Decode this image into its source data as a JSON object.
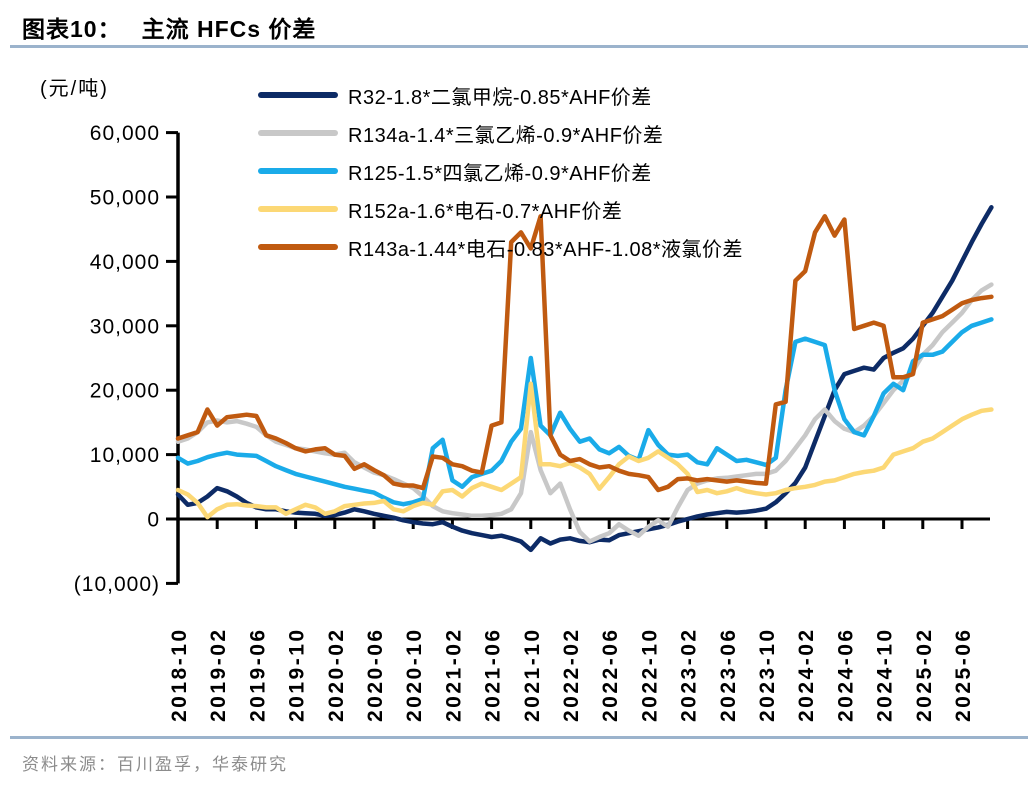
{
  "header": {
    "label": "图表10：",
    "title": "主流 HFCs 价差"
  },
  "footer": {
    "source": "资料来源：百川盈孚，华泰研究"
  },
  "colors": {
    "accent_rule": "#9bb3cc",
    "axis": "#000000",
    "footer_text": "#8c8c8c",
    "title_text": "#000000"
  },
  "chart_data": {
    "type": "line",
    "title": "主流 HFCs 价差",
    "y_unit": "(元/吨)",
    "ylim": [
      -10000,
      60000
    ],
    "grid": false,
    "legend_position": "top-left-inside",
    "x_frequency": "monthly",
    "x_start": "2018-10",
    "x_end": "2025-09",
    "x_tick_interval_months": 4,
    "x_tick_labels": [
      "2018-10",
      "2019-02",
      "2019-06",
      "2019-10",
      "2020-02",
      "2020-06",
      "2020-10",
      "2021-02",
      "2021-06",
      "2021-10",
      "2022-02",
      "2022-06",
      "2022-10",
      "2023-02",
      "2023-06",
      "2023-10",
      "2024-02",
      "2024-06",
      "2024-10",
      "2025-02",
      "2025-06"
    ],
    "y_ticks": [
      {
        "label": "60,000",
        "value": 60000
      },
      {
        "label": "50,000",
        "value": 50000
      },
      {
        "label": "40,000",
        "value": 40000
      },
      {
        "label": "30,000",
        "value": 30000
      },
      {
        "label": "20,000",
        "value": 20000
      },
      {
        "label": "10,000",
        "value": 10000
      },
      {
        "label": "0",
        "value": 0
      },
      {
        "label": "(10,000)",
        "value": -10000
      }
    ],
    "series": [
      {
        "name": "R32-1.8*二氯甲烷-0.85*AHF价差",
        "color": "#0d2b66",
        "values": [
          3800,
          2200,
          2500,
          3500,
          4800,
          4300,
          3500,
          2500,
          1800,
          1500,
          1500,
          1200,
          1000,
          900,
          800,
          500,
          600,
          1000,
          1500,
          1200,
          800,
          500,
          200,
          -200,
          -500,
          -700,
          -800,
          -500,
          -1200,
          -1800,
          -2200,
          -2500,
          -2800,
          -2600,
          -3000,
          -3500,
          -4800,
          -3000,
          -3800,
          -3200,
          -3000,
          -3400,
          -3600,
          -3200,
          -3300,
          -2500,
          -2200,
          -1900,
          -1600,
          -1300,
          -900,
          -400,
          0,
          400,
          700,
          900,
          1100,
          1000,
          1100,
          1300,
          1600,
          2600,
          4000,
          5600,
          8000,
          12000,
          16000,
          20000,
          22500,
          23000,
          23500,
          23200,
          25000,
          25800,
          26500,
          28000,
          30000,
          32000,
          34500,
          37000,
          40000,
          43000,
          45800,
          48400
        ]
      },
      {
        "name": "R134a-1.4*三氯乙烯-0.9*AHF价差",
        "color": "#c8c8c8",
        "values": [
          12000,
          12500,
          13500,
          15000,
          15300,
          15000,
          15200,
          14800,
          14300,
          13000,
          12000,
          11500,
          11000,
          10800,
          10500,
          10200,
          10000,
          10300,
          8800,
          8000,
          7200,
          6800,
          6200,
          5500,
          4800,
          3500,
          2000,
          1200,
          900,
          700,
          500,
          500,
          600,
          800,
          1500,
          4000,
          13500,
          7600,
          4000,
          5500,
          1500,
          -2000,
          -3500,
          -2800,
          -2200,
          -800,
          -1800,
          -2600,
          -1200,
          -200,
          -1200,
          1800,
          4500,
          5500,
          6000,
          6300,
          6400,
          6600,
          6800,
          7000,
          7000,
          7500,
          9000,
          11000,
          13000,
          15500,
          17000,
          15200,
          14000,
          13500,
          14500,
          16000,
          18000,
          20000,
          21500,
          23000,
          25500,
          27000,
          29000,
          30500,
          32000,
          34000,
          35500,
          36400
        ]
      },
      {
        "name": "R125-1.5*四氯乙烯-0.9*AHF价差",
        "color": "#1aabe9",
        "values": [
          9500,
          8600,
          9000,
          9600,
          10000,
          10300,
          10000,
          9900,
          9800,
          9000,
          8200,
          7600,
          7000,
          6600,
          6200,
          5800,
          5400,
          5000,
          4700,
          4400,
          4100,
          3300,
          2600,
          2300,
          2600,
          3100,
          11000,
          12300,
          6000,
          5000,
          6500,
          7000,
          7500,
          9000,
          12000,
          14000,
          25000,
          14500,
          13000,
          16500,
          14000,
          12000,
          12500,
          10800,
          10200,
          11200,
          9800,
          9200,
          13800,
          11500,
          10000,
          9800,
          10000,
          8800,
          8500,
          11000,
          10000,
          9000,
          9200,
          8800,
          8400,
          9500,
          20000,
          27500,
          28000,
          27500,
          27000,
          20000,
          15500,
          13500,
          13000,
          16000,
          19500,
          21000,
          20000,
          24500,
          25500,
          25500,
          26000,
          27500,
          29000,
          30000,
          30500,
          31000
        ]
      },
      {
        "name": "R152a-1.6*电石-0.7*AHF价差",
        "color": "#fcd875",
        "values": [
          4500,
          3800,
          2500,
          300,
          1500,
          2200,
          2300,
          2100,
          2000,
          1800,
          1800,
          800,
          1500,
          2200,
          1800,
          800,
          1200,
          2000,
          2200,
          2400,
          2500,
          2800,
          1500,
          1200,
          2000,
          2500,
          2200,
          4300,
          4500,
          3500,
          4800,
          5500,
          5000,
          4500,
          5500,
          6500,
          21000,
          8500,
          8500,
          8200,
          8700,
          8000,
          7000,
          4700,
          6500,
          8500,
          9700,
          9000,
          9500,
          10500,
          9500,
          8500,
          7000,
          4200,
          4500,
          4000,
          4300,
          4800,
          4300,
          4000,
          3800,
          4000,
          4500,
          4800,
          5000,
          5300,
          5800,
          6000,
          6500,
          7000,
          7300,
          7500,
          8000,
          10000,
          10500,
          11000,
          12000,
          12500,
          13500,
          14500,
          15500,
          16200,
          16800,
          17000
        ]
      },
      {
        "name": "R143a-1.44*电石-0.83*AHF-1.08*液氯价差",
        "color": "#c05a10",
        "values": [
          12500,
          13000,
          13500,
          17000,
          14500,
          15800,
          16000,
          16200,
          16000,
          13000,
          12500,
          11800,
          11000,
          10500,
          10800,
          11000,
          10000,
          9800,
          7800,
          8500,
          7600,
          6800,
          5500,
          5200,
          5200,
          4800,
          9700,
          9500,
          8500,
          8200,
          7500,
          7200,
          14500,
          15000,
          43000,
          44500,
          42000,
          47000,
          13000,
          10000,
          9000,
          9300,
          8500,
          8000,
          8200,
          7500,
          7000,
          6800,
          6500,
          4500,
          5000,
          6200,
          6300,
          6000,
          6200,
          6000,
          5800,
          6000,
          5800,
          5600,
          5500,
          17800,
          18200,
          37000,
          38500,
          44500,
          47000,
          44000,
          46500,
          29500,
          30000,
          30500,
          30000,
          22000,
          22000,
          22500,
          30500,
          31000,
          31500,
          32500,
          33500,
          34000,
          34300,
          34500
        ]
      }
    ]
  }
}
